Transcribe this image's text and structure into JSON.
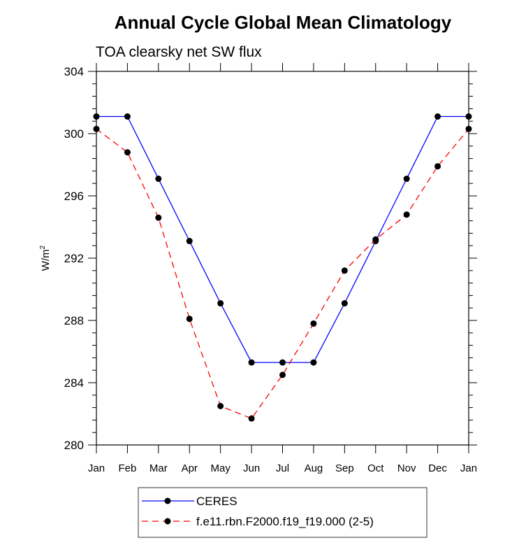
{
  "chart_data": {
    "type": "line",
    "title": "Annual Cycle Global Mean Climatology",
    "subtitle": "TOA clearsky net SW flux",
    "ylabel_base": "W/m",
    "ylabel_sup": "2",
    "xlabel": "",
    "ylim": [
      280,
      304
    ],
    "yticks": [
      "280",
      "284",
      "288",
      "292",
      "296",
      "300",
      "304"
    ],
    "categories": [
      "Jan",
      "Feb",
      "Mar",
      "Apr",
      "May",
      "Jun",
      "Jul",
      "Aug",
      "Sep",
      "Oct",
      "Nov",
      "Dec",
      "Jan"
    ],
    "series": [
      {
        "name": "CERES",
        "color": "#0000ff",
        "dash": "solid",
        "values": [
          301.1,
          301.1,
          297.1,
          293.1,
          289.1,
          285.3,
          285.3,
          285.3,
          289.1,
          293.1,
          297.1,
          301.1,
          301.1
        ]
      },
      {
        "name": "f.e11.rbn.F2000.f19_f19.000 (2-5)",
        "color": "#ff0000",
        "dash": "dashed",
        "values": [
          300.3,
          298.8,
          294.6,
          288.1,
          282.5,
          281.7,
          284.5,
          287.8,
          291.2,
          293.2,
          294.8,
          297.9,
          300.3
        ]
      }
    ],
    "legend_position": "bottom-center"
  }
}
